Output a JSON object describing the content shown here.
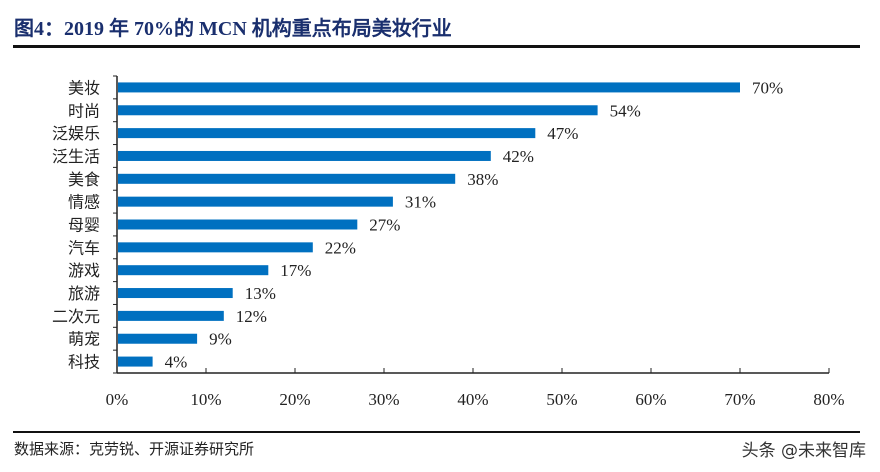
{
  "title": "图4：2019 年 70%的 MCN 机构重点布局美妆行业",
  "source": "数据来源：克劳锐、开源证券研究所",
  "watermark": "头条 @未来智库",
  "colors": {
    "bar": "#0070c0",
    "title": "#1a2f6e"
  },
  "chart_data": {
    "type": "bar",
    "orientation": "horizontal",
    "categories": [
      "美妆",
      "时尚",
      "泛娱乐",
      "泛生活",
      "美食",
      "情感",
      "母婴",
      "汽车",
      "游戏",
      "旅游",
      "二次元",
      "萌宠",
      "科技"
    ],
    "values": [
      70,
      54,
      47,
      42,
      38,
      31,
      27,
      22,
      17,
      13,
      12,
      9,
      4
    ],
    "data_labels": [
      "70%",
      "54%",
      "47%",
      "42%",
      "38%",
      "31%",
      "27%",
      "22%",
      "17%",
      "13%",
      "12%",
      "9%",
      "4%"
    ],
    "xlim": [
      0,
      80
    ],
    "x_ticks": [
      "0%",
      "10%",
      "20%",
      "30%",
      "40%",
      "50%",
      "60%",
      "70%",
      "80%"
    ],
    "grid": false,
    "legend": "none"
  }
}
